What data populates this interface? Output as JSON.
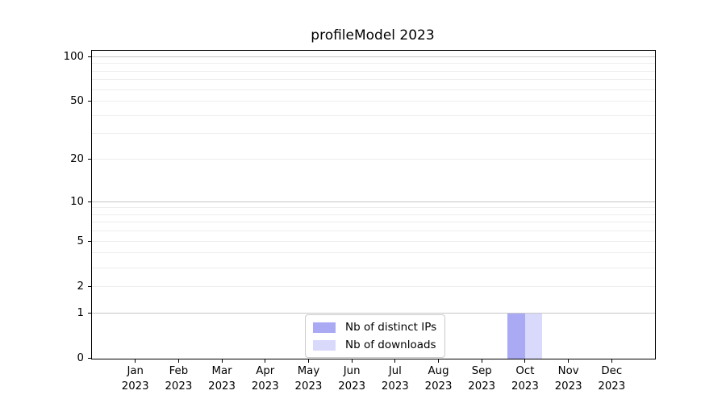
{
  "figure": {
    "background": "#ffffff"
  },
  "chart_data": {
    "type": "bar",
    "title": "profileModel 2023",
    "categories": [
      "Jan",
      "Feb",
      "Mar",
      "Apr",
      "May",
      "Jun",
      "Jul",
      "Aug",
      "Sep",
      "Oct",
      "Nov",
      "Dec"
    ],
    "tick_year": "2023",
    "series": [
      {
        "name": "Nb of distinct IPs",
        "color": "#a9a9f4",
        "values": [
          0,
          0,
          0,
          0,
          0,
          0,
          0,
          0,
          0,
          1,
          0,
          0
        ]
      },
      {
        "name": "Nb of downloads",
        "color": "#d9d9fb",
        "values": [
          0,
          0,
          0,
          0,
          0,
          0,
          0,
          0,
          0,
          1,
          0,
          0
        ]
      }
    ],
    "xlabel": "",
    "ylabel": "",
    "yscale": "log1p",
    "ylim": [
      0,
      110
    ],
    "ytick_labels": [
      0,
      1,
      2,
      5,
      10,
      20,
      50,
      100
    ],
    "grid_major": [
      1,
      10,
      100
    ],
    "grid_minor": [
      2,
      3,
      4,
      5,
      6,
      7,
      8,
      9,
      20,
      30,
      40,
      50,
      60,
      70,
      80,
      90
    ],
    "grid": "horizontal",
    "legend_position": "lower center",
    "bar_group_width_fraction": 0.8
  },
  "style": {
    "major_grid_color": "#c6c6c6",
    "minor_grid_color": "#ededed",
    "spine_color": "#000000",
    "text_color": "#000000",
    "legend_border_color": "#cbcbcb"
  }
}
